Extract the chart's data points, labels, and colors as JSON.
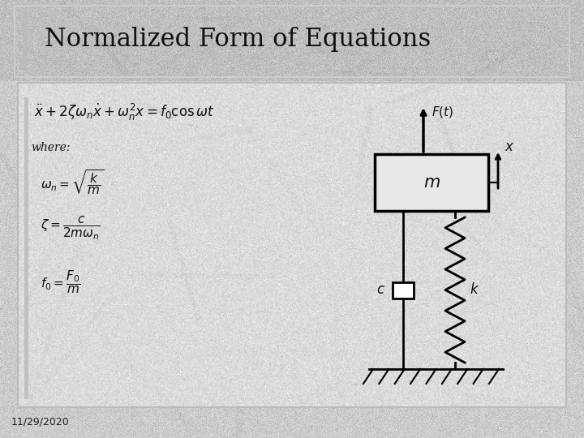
{
  "title": "Normalized Form of Equations",
  "title_fontsize": 22,
  "date_text": "11/29/2020",
  "main_eq": "$\\ddot{x}+2\\zeta\\omega_n\\dot{x}+\\omega_n^2 x = f_0 \\cos\\omega t$",
  "where_text": "where:",
  "eq1": "$\\omega_n = \\sqrt{\\dfrac{k}{m}}$",
  "eq2": "$\\zeta = \\dfrac{c}{2m\\omega_n}$",
  "eq3": "$f_0 = \\dfrac{F_0}{m}$",
  "Ft_label": "$F(t)$",
  "m_label": "$m$",
  "c_label": "$c$",
  "k_label": "$k$",
  "x_label": "$x$",
  "bg_outer": "#a8a8a8",
  "bg_title": "#c0bebe",
  "bg_slide": "#d0cecc"
}
